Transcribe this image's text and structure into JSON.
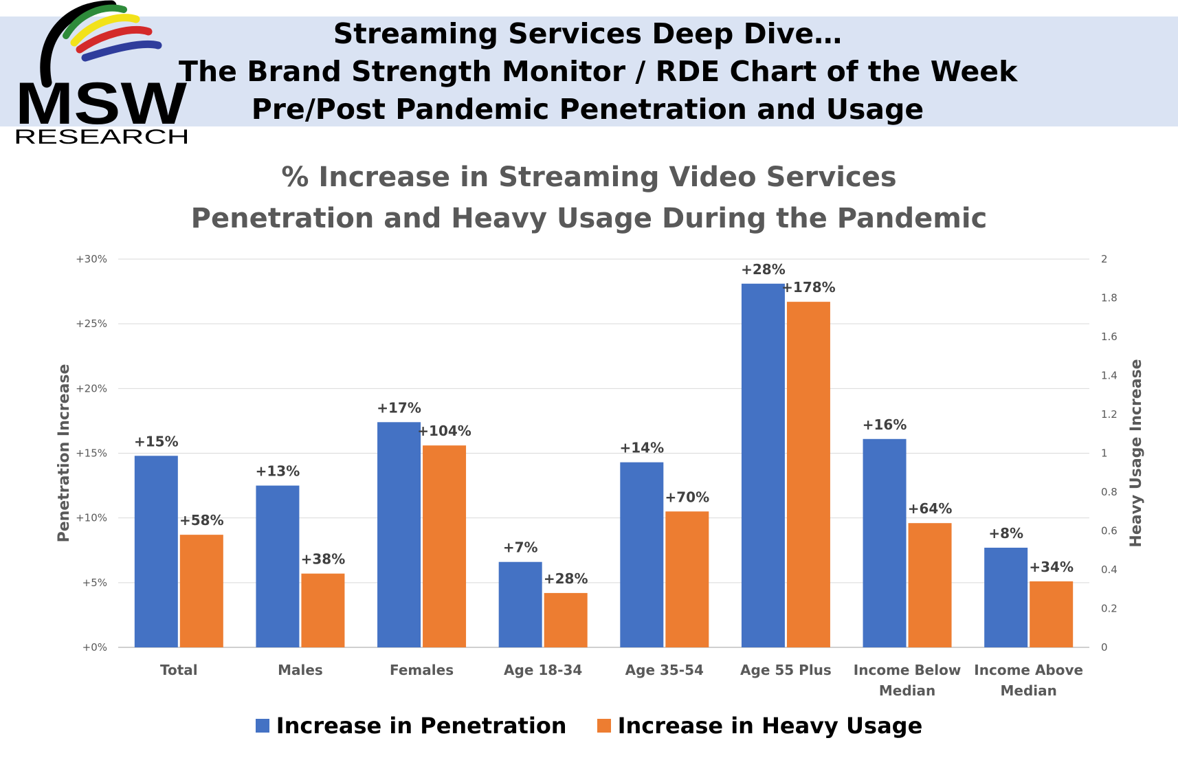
{
  "header": {
    "title_lines": [
      "Streaming Services Deep Dive…",
      "The Brand Strength Monitor / RDE Chart of the Week",
      "Pre/Post Pandemic Penetration and Usage"
    ],
    "logo_text": "MSW",
    "logo_subtext": "RESEARCH"
  },
  "colors": {
    "penetration": "#4472c4",
    "heavy_usage": "#ed7d31",
    "banner": "#dae3f3",
    "axis_text": "#595959"
  },
  "chart_data": {
    "type": "bar",
    "title_lines": [
      "% Increase in Streaming Video Services",
      "Penetration and Heavy Usage During the Pandemic"
    ],
    "categories": [
      [
        "Total"
      ],
      [
        "Males"
      ],
      [
        "Females"
      ],
      [
        "Age 18-34"
      ],
      [
        "Age 35-54"
      ],
      [
        "Age 55 Plus"
      ],
      [
        "Income Below",
        "Median"
      ],
      [
        "Income Above",
        "Median"
      ]
    ],
    "series": [
      {
        "name": "Increase in Penetration",
        "axis": "left",
        "values": [
          14.8,
          12.5,
          17.4,
          6.6,
          14.3,
          28.1,
          16.1,
          7.7
        ],
        "labels": [
          "+15%",
          "+13%",
          "+17%",
          "+7%",
          "+14%",
          "+28%",
          "+16%",
          "+8%"
        ]
      },
      {
        "name": "Increase in Heavy Usage",
        "axis": "right",
        "values": [
          0.58,
          0.38,
          1.04,
          0.28,
          0.7,
          1.78,
          0.64,
          0.34
        ],
        "labels": [
          "+58%",
          "+38%",
          "+104%",
          "+28%",
          "+70%",
          "+178%",
          "+64%",
          "+34%"
        ]
      }
    ],
    "y_left": {
      "label": "Penetration Increase",
      "range": [
        0,
        30
      ],
      "ticks": [
        0,
        5,
        10,
        15,
        20,
        25,
        30
      ],
      "tick_labels": [
        "+0%",
        "+5%",
        "+10%",
        "+15%",
        "+20%",
        "+25%",
        "+30%"
      ]
    },
    "y_right": {
      "label": "Heavy Usage Increase",
      "range": [
        0,
        2
      ],
      "ticks": [
        0,
        0.2,
        0.4,
        0.6,
        0.8,
        1,
        1.2,
        1.4,
        1.6,
        1.8,
        2
      ],
      "tick_labels": [
        "0",
        "0.2",
        "0.4",
        "0.6",
        "0.8",
        "1",
        "1.2",
        "1.4",
        "1.6",
        "1.8",
        "2"
      ]
    },
    "grid": true,
    "legend_position": "bottom"
  }
}
